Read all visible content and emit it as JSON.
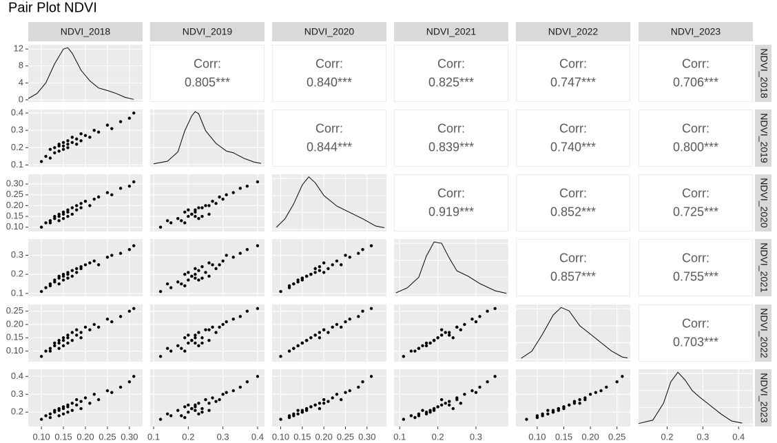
{
  "chart_data": {
    "type": "pairs",
    "title": "Pair Plot NDVI",
    "corr_title": "Corr:",
    "density_lim": [
      -0.5,
      13
    ],
    "density_ticks": [
      0,
      4,
      8,
      12
    ],
    "correlations": [
      "0.805***",
      "0.840***",
      "0.825***",
      "0.747***",
      "0.706***",
      "0.844***",
      "0.839***",
      "0.740***",
      "0.800***",
      "0.919***",
      "0.852***",
      "0.725***",
      "0.857***",
      "0.755***",
      "0.703***"
    ],
    "variables": [
      {
        "name": "NDVI_2018",
        "lim": [
          0.07,
          0.33
        ],
        "ticks": [
          {
            "value": 0.1,
            "label": "0.10"
          },
          {
            "value": 0.15,
            "label": "0.15"
          },
          {
            "value": 0.2,
            "label": "0.20"
          },
          {
            "value": 0.25,
            "label": "0.25"
          },
          {
            "value": 0.3,
            "label": "0.30"
          }
        ],
        "values": [
          0.1,
          0.11,
          0.12,
          0.12,
          0.13,
          0.13,
          0.14,
          0.14,
          0.14,
          0.15,
          0.15,
          0.15,
          0.16,
          0.16,
          0.16,
          0.17,
          0.17,
          0.18,
          0.18,
          0.19,
          0.19,
          0.2,
          0.21,
          0.22,
          0.23,
          0.25,
          0.26,
          0.28,
          0.3,
          0.31
        ],
        "density": {
          "x": [
            0.07,
            0.09,
            0.11,
            0.13,
            0.15,
            0.16,
            0.17,
            0.19,
            0.21,
            0.23,
            0.25,
            0.27,
            0.29,
            0.31
          ],
          "y": [
            0.3,
            1.5,
            4,
            8.5,
            12,
            12.3,
            11,
            7,
            4.5,
            2.8,
            2.2,
            1.5,
            0.6,
            0.1
          ]
        }
      },
      {
        "name": "NDVI_2019",
        "lim": [
          0.09,
          0.42
        ],
        "ticks": [
          0.1,
          0.2,
          0.3,
          0.4
        ],
        "values": [
          0.12,
          0.15,
          0.14,
          0.19,
          0.17,
          0.2,
          0.18,
          0.21,
          0.22,
          0.19,
          0.23,
          0.21,
          0.2,
          0.24,
          0.22,
          0.23,
          0.26,
          0.22,
          0.25,
          0.24,
          0.28,
          0.27,
          0.26,
          0.3,
          0.29,
          0.33,
          0.31,
          0.35,
          0.37,
          0.4
        ],
        "density": {
          "x": [
            0.1,
            0.14,
            0.17,
            0.19,
            0.21,
            0.22,
            0.23,
            0.25,
            0.28,
            0.31,
            0.33,
            0.36,
            0.39,
            0.41
          ],
          "y": [
            0.2,
            0.8,
            3,
            8,
            11.5,
            12.5,
            12,
            8,
            5,
            3.2,
            2.8,
            1.5,
            0.6,
            0.3
          ]
        }
      },
      {
        "name": "NDVI_2020",
        "lim": [
          0.08,
          0.345
        ],
        "ticks": [
          {
            "value": 0.1,
            "label": "0.10"
          },
          {
            "value": 0.15,
            "label": "0.15"
          },
          {
            "value": 0.2,
            "label": "0.20"
          },
          {
            "value": 0.25,
            "label": "0.25"
          },
          {
            "value": 0.3,
            "label": "0.30"
          }
        ],
        "values": [
          0.1,
          0.12,
          0.13,
          0.12,
          0.14,
          0.15,
          0.13,
          0.16,
          0.15,
          0.17,
          0.14,
          0.16,
          0.18,
          0.15,
          0.17,
          0.19,
          0.16,
          0.18,
          0.2,
          0.19,
          0.21,
          0.22,
          0.2,
          0.23,
          0.24,
          0.26,
          0.25,
          0.28,
          0.29,
          0.31
        ],
        "density": {
          "x": [
            0.09,
            0.11,
            0.13,
            0.15,
            0.165,
            0.18,
            0.2,
            0.23,
            0.26,
            0.29,
            0.32,
            0.34
          ],
          "y": [
            0.5,
            2.5,
            6,
            10.5,
            12.4,
            11,
            8,
            5.5,
            4,
            2.5,
            0.8,
            0.4
          ]
        }
      },
      {
        "name": "NDVI_2021",
        "lim": [
          0.085,
          0.385
        ],
        "ticks": [
          0.1,
          0.2,
          0.3
        ],
        "values": [
          0.11,
          0.13,
          0.15,
          0.14,
          0.16,
          0.17,
          0.15,
          0.19,
          0.18,
          0.2,
          0.17,
          0.19,
          0.21,
          0.18,
          0.2,
          0.22,
          0.19,
          0.23,
          0.21,
          0.24,
          0.23,
          0.25,
          0.26,
          0.27,
          0.25,
          0.29,
          0.3,
          0.31,
          0.33,
          0.35
        ],
        "density": {
          "x": [
            0.09,
            0.12,
            0.15,
            0.17,
            0.19,
            0.21,
            0.23,
            0.25,
            0.28,
            0.31,
            0.35,
            0.38
          ],
          "y": [
            0.3,
            1.5,
            4,
            9,
            12.3,
            12,
            8.5,
            5.5,
            4.2,
            2.5,
            0.8,
            0.2
          ]
        }
      },
      {
        "name": "NDVI_2022",
        "lim": [
          0.06,
          0.275
        ],
        "ticks": [
          {
            "value": 0.1,
            "label": "0.10"
          },
          {
            "value": 0.15,
            "label": "0.15"
          },
          {
            "value": 0.2,
            "label": "0.20"
          },
          {
            "value": 0.25,
            "label": "0.25"
          }
        ],
        "values": [
          0.08,
          0.1,
          0.11,
          0.1,
          0.12,
          0.13,
          0.11,
          0.14,
          0.13,
          0.15,
          0.12,
          0.14,
          0.16,
          0.13,
          0.15,
          0.17,
          0.14,
          0.16,
          0.18,
          0.15,
          0.17,
          0.19,
          0.18,
          0.2,
          0.19,
          0.22,
          0.21,
          0.23,
          0.25,
          0.26
        ],
        "density": {
          "x": [
            0.07,
            0.09,
            0.11,
            0.13,
            0.145,
            0.16,
            0.18,
            0.2,
            0.22,
            0.24,
            0.26,
            0.27
          ],
          "y": [
            0.3,
            2,
            6,
            10.5,
            12.3,
            11.5,
            8,
            6,
            4,
            2,
            0.6,
            0.4
          ]
        }
      },
      {
        "name": "NDVI_2023",
        "lim": [
          0.12,
          0.44
        ],
        "ticks": [
          0.2,
          0.3,
          0.4
        ],
        "values": [
          0.16,
          0.18,
          0.19,
          0.17,
          0.21,
          0.2,
          0.18,
          0.22,
          0.21,
          0.23,
          0.19,
          0.22,
          0.24,
          0.2,
          0.23,
          0.25,
          0.21,
          0.24,
          0.27,
          0.22,
          0.26,
          0.28,
          0.25,
          0.3,
          0.27,
          0.32,
          0.31,
          0.34,
          0.37,
          0.4
        ],
        "density": {
          "x": [
            0.12,
            0.16,
            0.19,
            0.21,
            0.23,
            0.25,
            0.27,
            0.29,
            0.32,
            0.35,
            0.38,
            0.41
          ],
          "y": [
            0.2,
            1,
            5,
            10,
            12.3,
            10.5,
            8,
            6.5,
            4.5,
            2.5,
            0.8,
            0.3
          ]
        }
      }
    ]
  }
}
